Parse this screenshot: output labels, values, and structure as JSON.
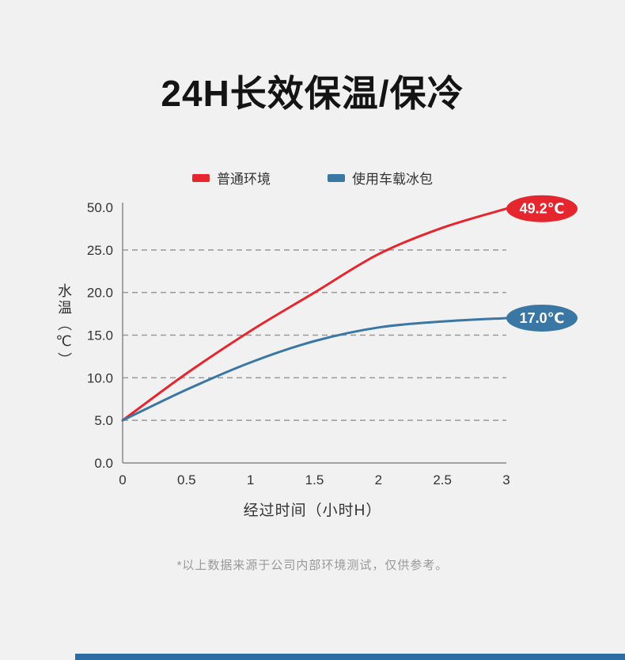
{
  "page": {
    "title": "24H长效保温/保冷",
    "footnote": "*以上数据来源于公司内部环境测试，仅供参考。"
  },
  "colors": {
    "background": "#f1f1f1",
    "red_series": "#e6262e",
    "blue_series": "#3a77a4",
    "grid": "#999999",
    "axis": "#888888",
    "tick_text": "#333333",
    "bottom_bar": "#2c6ba3",
    "badge_text": "#ffffff"
  },
  "chart_data": {
    "type": "line",
    "x": [
      0,
      0.5,
      1,
      1.5,
      2,
      2.5,
      3
    ],
    "x_tick_labels": [
      "0",
      "0.5",
      "1",
      "1.5",
      "2",
      "2.5",
      "3"
    ],
    "y_tick_values": [
      0,
      5,
      10,
      15,
      20,
      25,
      50
    ],
    "y_tick_labels": [
      "0.0",
      "5.0",
      "10.0",
      "15.0",
      "20.0",
      "25.0",
      "50.0"
    ],
    "y_axis_scale_note": "ticks evenly spaced, non-linear above 25",
    "xlabel": "经过时间（小时H）",
    "ylabel": "水温（℃）",
    "grid": "dashed horizontal lines at 5,10,15,20,25",
    "legend_position": "top-center",
    "series": [
      {
        "name": "普通环境",
        "color": "#e6262e",
        "values": [
          5.0,
          10.5,
          15.5,
          20.0,
          24.5,
          38.0,
          49.2
        ],
        "end_label": "49.2℃"
      },
      {
        "name": "使用车载冰包",
        "color": "#3a77a4",
        "values": [
          5.0,
          8.6,
          11.8,
          14.3,
          15.9,
          16.6,
          17.0
        ],
        "end_label": "17.0℃"
      }
    ]
  }
}
